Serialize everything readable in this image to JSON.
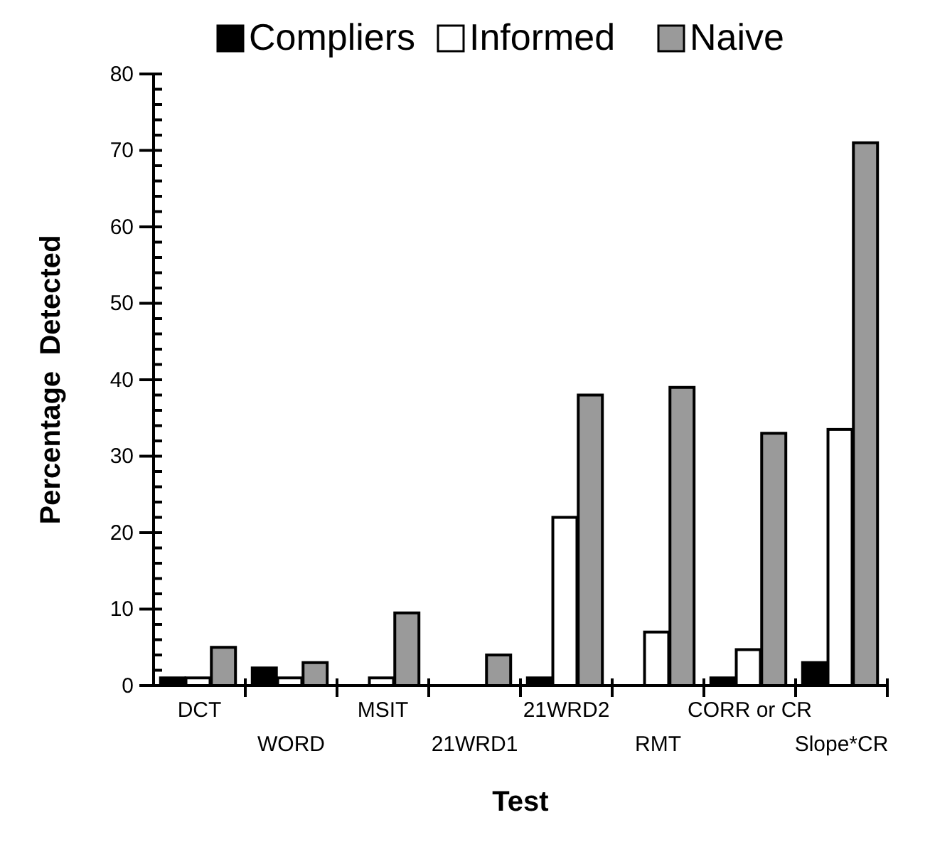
{
  "chart_data": {
    "type": "bar",
    "xlabel": "Test",
    "ylabel": "Percentage  Detected",
    "categories": [
      "DCT",
      "WORD",
      "MSIT",
      "21WRD1",
      "21WRD2",
      "RMT",
      "CORR or CR",
      "Slope*CR"
    ],
    "series": [
      {
        "name": "Compliers",
        "color": "#000000",
        "values": [
          1,
          2.3,
          0,
          0,
          1,
          0,
          1,
          3
        ]
      },
      {
        "name": "Informed",
        "color": "#ffffff",
        "values": [
          1,
          1,
          1,
          0,
          22,
          7,
          4.7,
          33.5
        ]
      },
      {
        "name": "Naive",
        "color": "#9a9a9a",
        "values": [
          5,
          3,
          9.5,
          4,
          38,
          39,
          33,
          71
        ]
      }
    ],
    "ylim": [
      0,
      80
    ],
    "yticks": [
      0,
      {
        "value": 2,
        "label": null
      },
      {
        "value": 4,
        "label": null
      },
      {
        "value": 6,
        "label": null
      },
      {
        "value": 8,
        "label": null
      },
      10,
      {
        "value": 12,
        "label": null
      },
      {
        "value": 14,
        "label": null
      },
      {
        "value": 16,
        "label": null
      },
      {
        "value": 18,
        "label": null
      },
      20,
      {
        "value": 22,
        "label": null
      },
      {
        "value": 24,
        "label": null
      },
      {
        "value": 26,
        "label": null
      },
      {
        "value": 28,
        "label": null
      },
      30,
      {
        "value": 32,
        "label": null
      },
      {
        "value": 34,
        "label": null
      },
      {
        "value": 36,
        "label": null
      },
      {
        "value": 38,
        "label": null
      },
      40,
      {
        "value": 42,
        "label": null
      },
      {
        "value": 44,
        "label": null
      },
      {
        "value": 46,
        "label": null
      },
      {
        "value": 48,
        "label": null
      },
      50,
      {
        "value": 52,
        "label": null
      },
      {
        "value": 54,
        "label": null
      },
      {
        "value": 56,
        "label": null
      },
      {
        "value": 58,
        "label": null
      },
      60,
      {
        "value": 62,
        "label": null
      },
      {
        "value": 64,
        "label": null
      },
      {
        "value": 66,
        "label": null
      },
      {
        "value": 68,
        "label": null
      },
      70,
      {
        "value": 72,
        "label": null
      },
      {
        "value": 74,
        "label": null
      },
      {
        "value": 76,
        "label": null
      },
      {
        "value": 78,
        "label": null
      },
      80
    ],
    "legend": "top",
    "grid": false
  }
}
